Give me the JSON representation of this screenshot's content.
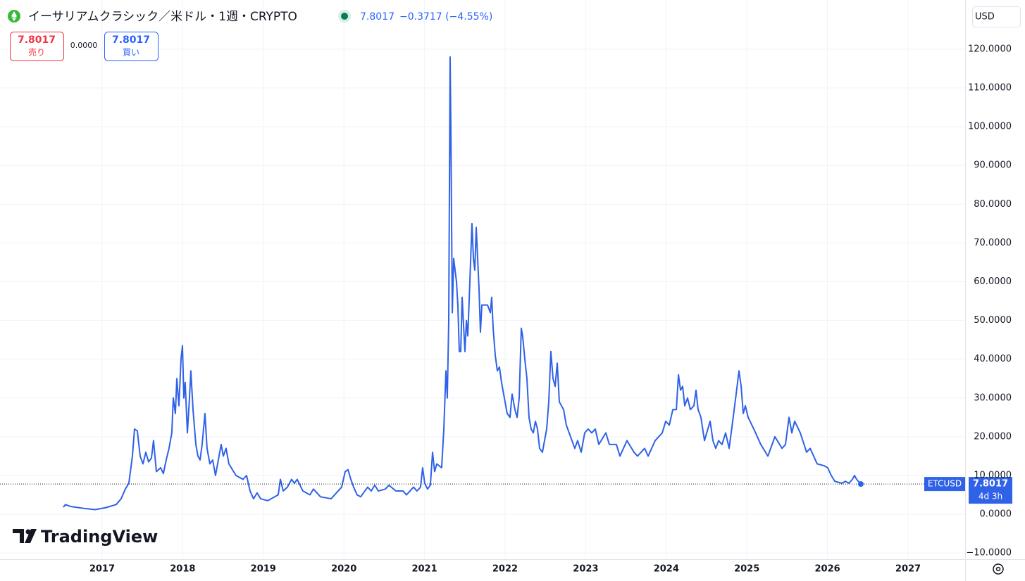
{
  "header": {
    "title": "イーサリアムクラシック／米ドル・1週・CRYPTO",
    "price": "7.8017",
    "change": "−0.3717 (−4.55%)",
    "sell_price": "7.8017",
    "sell_label": "売り",
    "spread": "0.0000",
    "buy_price": "7.8017",
    "buy_label": "買い",
    "currency": "USD",
    "logo": "TradingView"
  },
  "price_tag": {
    "countdown": "4d 3h"
  },
  "chart_data": {
    "type": "line",
    "grid": true,
    "xlim": [
      2015.733,
      2027.708
    ],
    "ylim": [
      -11.6,
      132.7
    ],
    "xticks": [
      2017,
      2018,
      2019,
      2020,
      2021,
      2022,
      2023,
      2024,
      2025,
      2026,
      2027
    ],
    "yticks": [
      {
        "value": -10,
        "label": "−10.0000"
      },
      {
        "value": 0,
        "label": "0.0000"
      },
      {
        "value": 10,
        "label": "10.0000"
      },
      {
        "value": 20,
        "label": "20.0000"
      },
      {
        "value": 30,
        "label": "30.0000"
      },
      {
        "value": 40,
        "label": "40.0000"
      },
      {
        "value": 50,
        "label": "50.0000"
      },
      {
        "value": 60,
        "label": "60.0000"
      },
      {
        "value": 70,
        "label": "70.0000"
      },
      {
        "value": 80,
        "label": "80.0000"
      },
      {
        "value": 90,
        "label": "90.0000"
      },
      {
        "value": 100,
        "label": "100.0000"
      },
      {
        "value": 110,
        "label": "110.0000"
      },
      {
        "value": 120,
        "label": "120.0000"
      }
    ],
    "x": [
      2016.519,
      2016.545,
      2016.607,
      2016.781,
      2016.913,
      2017.044,
      2017.175,
      2017.236,
      2017.288,
      2017.332,
      2017.376,
      2017.402,
      2017.437,
      2017.472,
      2017.507,
      2017.542,
      2017.577,
      2017.612,
      2017.638,
      2017.673,
      2017.726,
      2017.76,
      2017.795,
      2017.83,
      2017.865,
      2017.883,
      2017.909,
      2017.927,
      2017.953,
      2017.979,
      2017.997,
      2018.014,
      2018.031,
      2018.058,
      2018.084,
      2018.101,
      2018.128,
      2018.163,
      2018.189,
      2018.215,
      2018.241,
      2018.276,
      2018.302,
      2018.337,
      2018.372,
      2018.407,
      2018.442,
      2018.477,
      2018.504,
      2018.538,
      2018.573,
      2018.661,
      2018.748,
      2018.792,
      2018.836,
      2018.879,
      2018.923,
      2018.967,
      2019.054,
      2019.142,
      2019.185,
      2019.212,
      2019.247,
      2019.299,
      2019.351,
      2019.386,
      2019.421,
      2019.491,
      2019.579,
      2019.622,
      2019.71,
      2019.841,
      2019.928,
      2019.972,
      2020.016,
      2020.051,
      2020.086,
      2020.121,
      2020.164,
      2020.208,
      2020.26,
      2020.295,
      2020.339,
      2020.383,
      2020.427,
      2020.514,
      2020.558,
      2020.645,
      2020.733,
      2020.776,
      2020.864,
      2020.907,
      2020.951,
      2020.977,
      2021.003,
      2021.038,
      2021.073,
      2021.1,
      2021.126,
      2021.152,
      2021.213,
      2021.24,
      2021.266,
      2021.283,
      2021.301,
      2021.318,
      2021.327,
      2021.345,
      2021.362,
      2021.397,
      2021.414,
      2021.432,
      2021.45,
      2021.467,
      2021.484,
      2021.502,
      2021.52,
      2021.537,
      2021.554,
      2021.589,
      2021.607,
      2021.624,
      2021.642,
      2021.677,
      2021.694,
      2021.712,
      2021.782,
      2021.817,
      2021.834,
      2021.852,
      2021.878,
      2021.904,
      2021.93,
      2021.956,
      2021.991,
      2022.026,
      2022.061,
      2022.087,
      2022.122,
      2022.149,
      2022.175,
      2022.201,
      2022.218,
      2022.245,
      2022.271,
      2022.297,
      2022.323,
      2022.35,
      2022.376,
      2022.402,
      2022.428,
      2022.463,
      2022.516,
      2022.542,
      2022.568,
      2022.595,
      2022.621,
      2022.647,
      2022.673,
      2022.726,
      2022.76,
      2022.83,
      2022.865,
      2022.9,
      2022.944,
      2022.988,
      2023.031,
      2023.075,
      2023.119,
      2023.163,
      2023.25,
      2023.294,
      2023.381,
      2023.425,
      2023.512,
      2023.6,
      2023.643,
      2023.731,
      2023.775,
      2023.862,
      2023.95,
      2023.993,
      2024.037,
      2024.081,
      2024.125,
      2024.151,
      2024.177,
      2024.203,
      2024.229,
      2024.264,
      2024.299,
      2024.343,
      2024.369,
      2024.395,
      2024.43,
      2024.474,
      2024.544,
      2024.579,
      2024.614,
      2024.649,
      2024.692,
      2024.736,
      2024.78,
      2024.824,
      2024.867,
      2024.902,
      2024.929,
      2024.955,
      2024.981,
      2025.016,
      2025.086,
      2025.173,
      2025.261,
      2025.348,
      2025.436,
      2025.479,
      2025.523,
      2025.558,
      2025.593,
      2025.663,
      2025.741,
      2025.785,
      2025.872,
      2025.96,
      2026.003,
      2026.047,
      2026.091,
      2026.178,
      2026.222,
      2026.266,
      2026.309,
      2026.336,
      2026.362,
      2026.414
    ],
    "series": [
      {
        "name": "ETCUSD",
        "color": "#2f62e6",
        "values": [
          1.8,
          2.5,
          2.0,
          1.5,
          1.2,
          1.7,
          2.5,
          4,
          6.5,
          8,
          15,
          22,
          21.5,
          15,
          13,
          16,
          13.5,
          14.5,
          19,
          11,
          12,
          10.5,
          14,
          17,
          21,
          30,
          26,
          35,
          28,
          40,
          43.5,
          30,
          34,
          21,
          30,
          37,
          27,
          18,
          15,
          14,
          18,
          26,
          17,
          13,
          14,
          10,
          14,
          18,
          15,
          17,
          13,
          10,
          9,
          10,
          6,
          4,
          5.5,
          4,
          3.5,
          4.5,
          5,
          9,
          6,
          7,
          9,
          8,
          9,
          6,
          5,
          6.5,
          4.5,
          4,
          6,
          7,
          11,
          11.5,
          9,
          7,
          5,
          4.5,
          6,
          7,
          6,
          7.5,
          6,
          6.5,
          7.5,
          6,
          6,
          5,
          7,
          6,
          7,
          12,
          8,
          6.5,
          7.5,
          16,
          11,
          13,
          12,
          22,
          37,
          30,
          50,
          118,
          100,
          52,
          66,
          60,
          54,
          42,
          42,
          56,
          49,
          42,
          50,
          46,
          55,
          75,
          66,
          63,
          74,
          58,
          47,
          54,
          54,
          52,
          56,
          48,
          41,
          37,
          38,
          34,
          30,
          26,
          25,
          31,
          27,
          25,
          30,
          48,
          46,
          40,
          35,
          25,
          22,
          21,
          24,
          22,
          17,
          16,
          22,
          29,
          42,
          35,
          33,
          39,
          29,
          27,
          23,
          19,
          17,
          19,
          16,
          21,
          22,
          21,
          22,
          18,
          21,
          18,
          18,
          15,
          19,
          16,
          15,
          17,
          15,
          19,
          21,
          24,
          23,
          27,
          27,
          36,
          32,
          33,
          28,
          30,
          27,
          28,
          32,
          27,
          25,
          19,
          24,
          19,
          17,
          19,
          18,
          21,
          17,
          24,
          31,
          37,
          33,
          26,
          28,
          25,
          22,
          18,
          15,
          20,
          17,
          18,
          25,
          21,
          24,
          21,
          16,
          17,
          13,
          12.5,
          12,
          10,
          8.5,
          8,
          8.5,
          8,
          9,
          10,
          9,
          7.8017
        ]
      }
    ]
  }
}
